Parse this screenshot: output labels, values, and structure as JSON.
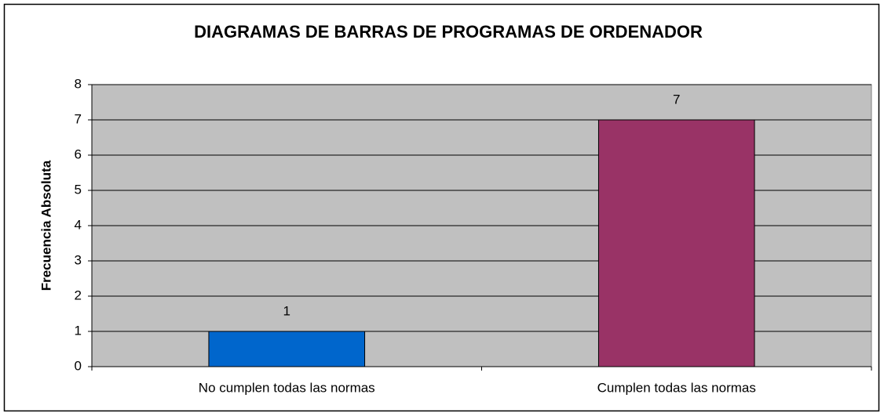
{
  "chart_data": {
    "type": "bar",
    "title": "DIAGRAMAS DE BARRAS DE PROGRAMAS DE ORDENADOR",
    "y_label": "Frecuencia Absoluta",
    "categories": [
      "No cumplen todas las normas",
      "Cumplen todas las normas"
    ],
    "values": [
      1,
      7
    ],
    "colors": [
      "#0066cc",
      "#993366"
    ],
    "ylim": [
      0,
      8
    ],
    "yticks": [
      0,
      1,
      2,
      3,
      4,
      5,
      6,
      7,
      8
    ],
    "grid": true
  }
}
